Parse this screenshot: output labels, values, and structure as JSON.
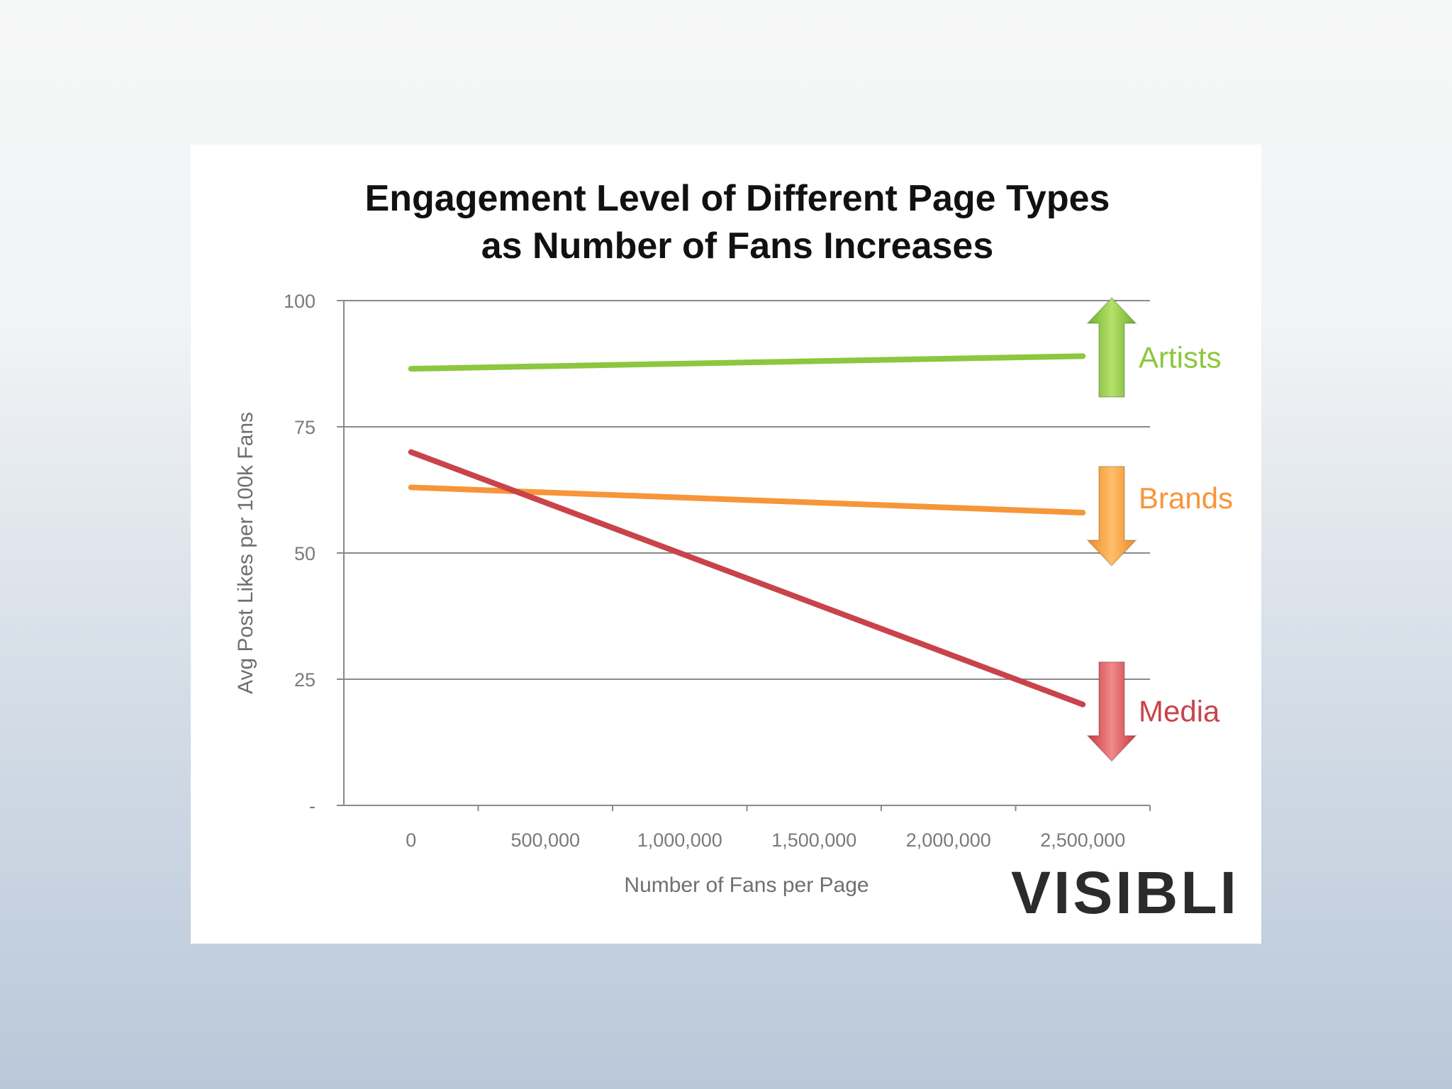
{
  "chart_data": {
    "type": "line",
    "title_lines": [
      "Engagement Level of Different Page Types",
      "as Number of Fans Increases"
    ],
    "xlabel": "Number of Fans per Page",
    "ylabel": "Avg Post Likes per 100k Fans",
    "xlim": [
      -250000,
      2750000
    ],
    "ylim": [
      0,
      100
    ],
    "x_ticks": [
      0,
      500000,
      1000000,
      1500000,
      2000000,
      2500000
    ],
    "x_tick_labels": [
      "0",
      "500,000",
      "1,000,000",
      "1,500,000",
      "2,000,000",
      "2,500,000"
    ],
    "y_ticks": [
      0,
      25,
      50,
      75,
      100
    ],
    "y_tick_labels": [
      "-",
      "25",
      "50",
      "75",
      "100"
    ],
    "grid": true,
    "series": [
      {
        "name": "Artists",
        "x": [
          0,
          2500000
        ],
        "y": [
          86.5,
          89
        ],
        "color": "#8dc63f",
        "trend": "up"
      },
      {
        "name": "Brands",
        "x": [
          0,
          2500000
        ],
        "y": [
          63,
          58
        ],
        "color": "#f7953a",
        "trend": "down"
      },
      {
        "name": "Media",
        "x": [
          0,
          2500000
        ],
        "y": [
          70,
          20
        ],
        "color": "#c9434a",
        "trend": "down"
      }
    ],
    "logo": "VISIBLI"
  }
}
